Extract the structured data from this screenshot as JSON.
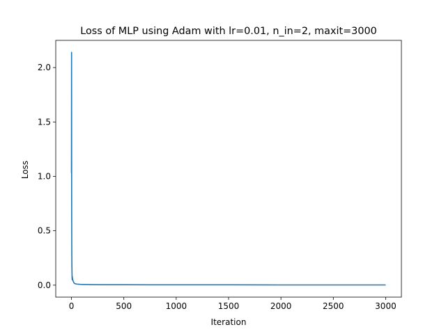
{
  "chart_data": {
    "type": "line",
    "title": "Loss of MLP using Adam with lr=0.01, n_in=2, maxit=3000",
    "xlabel": "Iteration",
    "ylabel": "Loss",
    "xlim": [
      -150,
      3150
    ],
    "ylim": [
      -0.11,
      2.25
    ],
    "x_ticks": [
      0,
      500,
      1000,
      1500,
      2000,
      2500,
      3000
    ],
    "y_ticks": [
      0.0,
      0.5,
      1.0,
      1.5,
      2.0
    ],
    "x_tick_labels": [
      "0",
      "500",
      "1000",
      "1500",
      "2000",
      "2500",
      "3000"
    ],
    "y_tick_labels": [
      "0.0",
      "0.5",
      "1.0",
      "1.5",
      "2.0"
    ],
    "grid": false,
    "series": [
      {
        "color": "#1f77b4",
        "x": [
          0,
          1,
          2,
          3,
          4,
          5,
          6,
          7,
          8,
          10,
          12,
          15,
          20,
          25,
          30,
          40,
          50,
          75,
          100,
          200,
          300,
          500,
          750,
          1000,
          1500,
          2000,
          2500,
          3000
        ],
        "y": [
          1.03,
          2.14,
          0.7,
          0.32,
          0.18,
          0.12,
          0.07,
          0.05,
          0.08,
          0.06,
          0.05,
          0.04,
          0.03,
          0.02,
          0.015,
          0.012,
          0.01,
          0.008,
          0.006,
          0.005,
          0.004,
          0.004,
          0.003,
          0.003,
          0.003,
          0.002,
          0.002,
          0.002
        ]
      }
    ]
  }
}
